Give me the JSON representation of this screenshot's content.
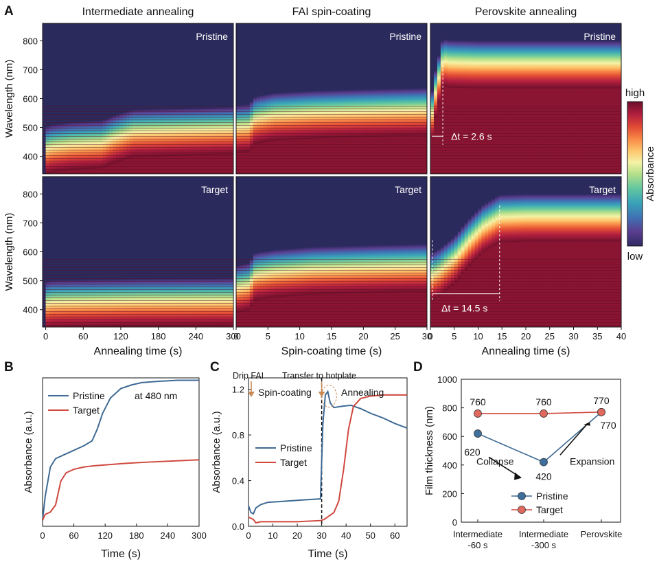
{
  "colors": {
    "dark": "#2a2a5a",
    "pristine": "#3e6a94",
    "target": "#d0483e",
    "marker_pristine": "#3f6f9c",
    "marker_target": "#e06a5e",
    "annotation": "#c98a55"
  },
  "colormap": [
    "#2f2a63",
    "#5a3d8f",
    "#3f73b4",
    "#39a3b8",
    "#63c79f",
    "#b6e08a",
    "#f4f2a6",
    "#fdc56d",
    "#f98a47",
    "#e34e35",
    "#b31f3f",
    "#6a0f2a"
  ],
  "panelA": {
    "label": "A",
    "columns": [
      {
        "title": "Intermediate annealing",
        "xlabel": "Annealing time (s)",
        "xlim": [
          -5,
          300
        ],
        "ticks": [
          0,
          60,
          120,
          180,
          240,
          300
        ],
        "pristine_edge": {
          "t": [
            0,
            10,
            40,
            90,
            110,
            140,
            200,
            300
          ],
          "nm": [
            430,
            438,
            446,
            452,
            470,
            490,
            494,
            500
          ]
        },
        "target_edge": {
          "t": [
            0,
            10,
            60,
            150,
            300
          ],
          "nm": [
            425,
            430,
            432,
            435,
            437
          ]
        }
      },
      {
        "title": "FAI spin-coating",
        "xlabel": "Spin-coating time (s)",
        "xlim": [
          0,
          30
        ],
        "ticks": [
          0,
          5,
          10,
          15,
          20,
          25,
          30
        ],
        "pristine_edge": {
          "t": [
            0,
            2,
            3,
            6,
            12,
            20,
            30
          ],
          "nm": [
            505,
            508,
            535,
            548,
            555,
            560,
            565
          ]
        },
        "target_edge": {
          "t": [
            0,
            2,
            3,
            6,
            12,
            20,
            30
          ],
          "nm": [
            480,
            490,
            525,
            535,
            545,
            550,
            555
          ]
        }
      },
      {
        "title": "Perovskite annealing",
        "xlabel": "Annealing time (s)",
        "xlim": [
          0,
          40
        ],
        "ticks": [
          0,
          5,
          10,
          15,
          20,
          25,
          30,
          35,
          40
        ],
        "pristine_edge": {
          "t": [
            0,
            1,
            2.6,
            4,
            10,
            40
          ],
          "nm": [
            520,
            620,
            735,
            730,
            728,
            728
          ]
        },
        "target_edge": {
          "t": [
            0,
            2,
            5,
            8,
            11,
            14.5,
            20,
            40
          ],
          "nm": [
            520,
            540,
            580,
            640,
            690,
            725,
            728,
            728
          ]
        }
      }
    ],
    "ylabel": "Wavelength (nm)",
    "ylim": [
      340,
      860
    ],
    "yticks": [
      400,
      500,
      600,
      700,
      800
    ],
    "row_labels": [
      "Pristine",
      "Target"
    ],
    "delta_pristine": "Δt = 2.6 s",
    "delta_target": "Δt = 14.5 s",
    "colorbar": {
      "high": "high",
      "low": "low",
      "label": "Absorbance"
    }
  },
  "chart_data": [
    {
      "type": "line",
      "panel": "B",
      "xlabel": "Time (s)",
      "ylabel": "Absorbance (a.u.)",
      "xlim": [
        0,
        300
      ],
      "xticks": [
        0,
        60,
        120,
        180,
        240,
        300
      ],
      "ylim": [
        0,
        1.25
      ],
      "annotation": "at 480 nm",
      "series": [
        {
          "name": "Pristine",
          "x": [
            0,
            5,
            15,
            25,
            40,
            60,
            80,
            95,
            105,
            115,
            130,
            150,
            170,
            190,
            220,
            260,
            300
          ],
          "y": [
            0.05,
            0.25,
            0.5,
            0.57,
            0.6,
            0.64,
            0.68,
            0.72,
            0.82,
            0.95,
            1.08,
            1.16,
            1.19,
            1.21,
            1.22,
            1.23,
            1.23
          ]
        },
        {
          "name": "Target",
          "x": [
            0,
            5,
            15,
            25,
            35,
            45,
            60,
            80,
            100,
            130,
            160,
            200,
            250,
            300
          ],
          "y": [
            0.05,
            0.1,
            0.12,
            0.18,
            0.38,
            0.45,
            0.48,
            0.5,
            0.51,
            0.52,
            0.53,
            0.54,
            0.55,
            0.56
          ]
        }
      ]
    },
    {
      "type": "line",
      "panel": "C",
      "xlabel": "Time (s)",
      "ylabel": "Absorbance (a.u.)",
      "xlim": [
        0,
        65
      ],
      "xticks": [
        0,
        10,
        20,
        30,
        40,
        50,
        60
      ],
      "ylim": [
        0,
        1.3
      ],
      "yticks": [
        "0.0",
        "0.4",
        "0.8",
        "1.2"
      ],
      "divider_x": 30,
      "annotations": {
        "drip": "Drip FAI",
        "transfer": "Transfer to hotplate",
        "phase1": "Spin-coating",
        "phase2": "Annealing"
      },
      "series": [
        {
          "name": "Pristine",
          "x": [
            0,
            1,
            2,
            3,
            5,
            8,
            15,
            22,
            29.5,
            30.5,
            31.5,
            32.5,
            33.5,
            35,
            38,
            42,
            46,
            50,
            55,
            60,
            65
          ],
          "y": [
            0.18,
            0.12,
            0.11,
            0.16,
            0.19,
            0.21,
            0.22,
            0.23,
            0.24,
            0.9,
            1.15,
            1.18,
            1.08,
            1.04,
            1.05,
            1.06,
            1.03,
            0.99,
            0.95,
            0.9,
            0.86
          ]
        },
        {
          "name": "Target",
          "x": [
            0,
            2,
            3,
            5,
            10,
            20,
            29.5,
            31,
            33,
            35,
            37,
            39,
            41,
            43,
            46,
            50,
            55,
            60,
            65
          ],
          "y": [
            0.08,
            0.06,
            0.03,
            0.04,
            0.04,
            0.04,
            0.05,
            0.06,
            0.09,
            0.12,
            0.22,
            0.5,
            0.85,
            1.05,
            1.12,
            1.14,
            1.15,
            1.15,
            1.15
          ]
        }
      ]
    },
    {
      "type": "line",
      "panel": "D",
      "ylabel": "Film thickness (nm)",
      "ylim": [
        0,
        1000
      ],
      "yticks": [
        0,
        200,
        400,
        600,
        800,
        1000
      ],
      "categories": [
        "Intermediate\n-60 s",
        "Intermediate\n-300 s",
        "Perovskite"
      ],
      "series": [
        {
          "name": "Pristine",
          "values": [
            620,
            420,
            770
          ]
        },
        {
          "name": "Target",
          "values": [
            760,
            760,
            770
          ]
        }
      ],
      "value_labels": {
        "pristine": [
          "620",
          "420",
          "770"
        ],
        "target": [
          "760",
          "760",
          "770"
        ]
      },
      "annotations": {
        "collapse": "Collapse",
        "expansion": "Expansion"
      }
    }
  ]
}
